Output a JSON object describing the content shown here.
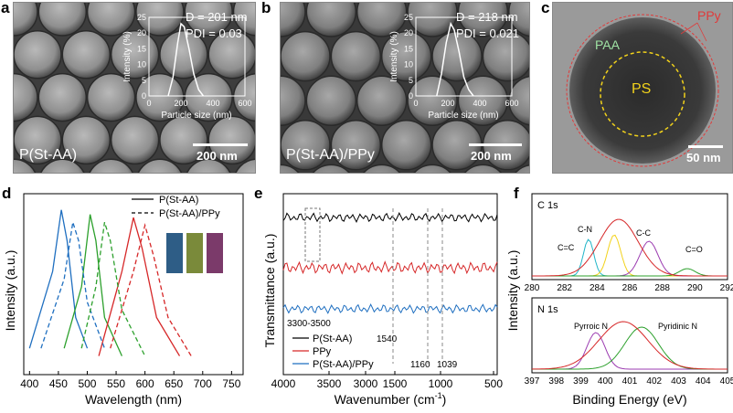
{
  "panels": {
    "a": {
      "label": "a",
      "sample": "P(St-AA)",
      "d_text": "D = 201 nm",
      "pdi_text": "PDI = 0.03",
      "scale": "200 nm",
      "inset": {
        "xlabel": "Particle size (nm)",
        "ylabel": "Intensity (%)",
        "xticks": [
          "0",
          "200",
          "400",
          "600"
        ],
        "yticks": [
          "0",
          "5",
          "10",
          "15",
          "20",
          "25"
        ]
      }
    },
    "b": {
      "label": "b",
      "sample": "P(St-AA)/PPy",
      "d_text": "D = 218 nm",
      "pdi_text": "PDI = 0.021",
      "scale": "200 nm",
      "inset": {
        "xlabel": "Particle size (nm)",
        "ylabel": "Intensity (%)",
        "xticks": [
          "0",
          "200",
          "400",
          "600"
        ],
        "yticks": [
          "0",
          "5",
          "10",
          "15",
          "20",
          "25"
        ]
      }
    },
    "c": {
      "label": "c",
      "ppy": "PPy",
      "paa": "PAA",
      "ps": "PS",
      "scale": "50 nm"
    },
    "d": {
      "label": "d",
      "xlabel": "Wavelength (nm)",
      "ylabel": "Intensity (a.u.)",
      "xticks": [
        "400",
        "450",
        "500",
        "550",
        "600",
        "650",
        "700",
        "750"
      ],
      "legend": [
        "P(St-AA)",
        "P(St-AA)/PPy"
      ]
    },
    "e": {
      "label": "e",
      "xlabel": "Wavenumber (cm",
      "xlabel_sup": "-1",
      "xlabel_end": ")",
      "ylabel": "Transmittance (a.u.)",
      "xticks": [
        "4000",
        "3500",
        "3000",
        "1500",
        "1000",
        "500"
      ],
      "annotations": [
        "3300-3500",
        "1540",
        "1160",
        "1039"
      ],
      "legend": [
        "P(St-AA)",
        "PPy",
        "P(St-AA)/PPy"
      ]
    },
    "f": {
      "label": "f",
      "c1s": "C 1s",
      "n1s": "N 1s",
      "c_peaks": [
        "C=C",
        "C-N",
        "C-C",
        "C=O"
      ],
      "n_peaks": [
        "Pyrroic N",
        "Pyridinic N"
      ],
      "c_xticks": [
        "280",
        "282",
        "284",
        "286",
        "288",
        "290",
        "292"
      ],
      "n_xticks": [
        "397",
        "398",
        "399",
        "400",
        "401",
        "402",
        "403",
        "404",
        "405"
      ],
      "xlabel": "Binding Energy (eV)",
      "ylabel": "Intensity (a.u.)"
    }
  },
  "colors": {
    "black": "#000000",
    "red": "#d62728",
    "blue": "#1f6fc0",
    "green": "#2ca02c",
    "yellow": "#f2d21b",
    "cyan": "#21b5c8",
    "purple": "#9b3bb0"
  },
  "chart_data": [
    {
      "type": "line",
      "title": "",
      "xlabel": "Particle size (nm)",
      "ylabel": "Intensity (%)",
      "xlim": [
        0,
        600
      ],
      "ylim": [
        0,
        25
      ],
      "series": [
        {
          "x": [
            120,
            150,
            180,
            200,
            220,
            250,
            280,
            310,
            340
          ],
          "values": [
            0,
            6,
            17,
            23,
            22,
            15,
            7,
            2,
            0
          ]
        }
      ]
    },
    {
      "type": "line",
      "title": "",
      "xlabel": "Particle size (nm)",
      "ylabel": "Intensity (%)",
      "xlim": [
        0,
        600
      ],
      "ylim": [
        0,
        25
      ],
      "series": [
        {
          "x": [
            130,
            160,
            190,
            218,
            240,
            270,
            300,
            330,
            360
          ],
          "values": [
            0,
            7,
            17,
            23,
            21,
            14,
            6,
            2,
            0
          ]
        }
      ]
    },
    {
      "type": "line",
      "xlabel": "Wavelength (nm)",
      "ylabel": "Intensity (a.u.)",
      "xlim": [
        390,
        770
      ],
      "series": [
        {
          "name": "P(St-AA)",
          "x": [
            400,
            440,
            455,
            465,
            480,
            500
          ],
          "values": [
            0.1,
            0.6,
            1.0,
            0.8,
            0.3,
            0.1
          ]
        },
        {
          "name": "P(St-AA)",
          "x": [
            460,
            490,
            505,
            515,
            530,
            560
          ],
          "values": [
            0.1,
            0.5,
            0.97,
            0.8,
            0.3,
            0.05
          ]
        },
        {
          "name": "P(St-AA)",
          "x": [
            520,
            560,
            580,
            595,
            620,
            660
          ],
          "values": [
            0.05,
            0.6,
            0.95,
            0.75,
            0.3,
            0.05
          ]
        },
        {
          "name": "P(St-AA)/PPy",
          "x": [
            420,
            460,
            475,
            485,
            500,
            530
          ],
          "values": [
            0.1,
            0.55,
            0.92,
            0.8,
            0.4,
            0.1
          ]
        },
        {
          "name": "P(St-AA)/PPy",
          "x": [
            490,
            515,
            530,
            540,
            560,
            600
          ],
          "values": [
            0.1,
            0.5,
            0.92,
            0.8,
            0.35,
            0.05
          ]
        },
        {
          "name": "P(St-AA)/PPy",
          "x": [
            540,
            580,
            600,
            615,
            640,
            680
          ],
          "values": [
            0.1,
            0.6,
            0.9,
            0.7,
            0.3,
            0.05
          ]
        }
      ]
    }
  ]
}
